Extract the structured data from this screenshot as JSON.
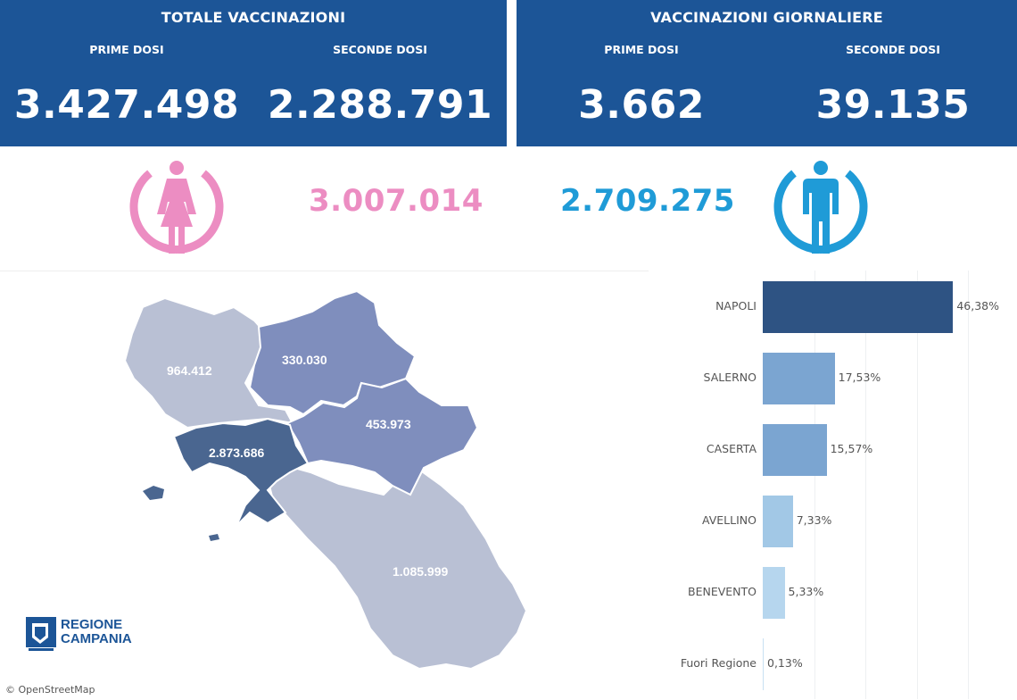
{
  "totale": {
    "title": "TOTALE VACCINAZIONI",
    "prime_label": "PRIME DOSI",
    "seconde_label": "SECONDE DOSI",
    "prime_value": "3.427.498",
    "seconde_value": "2.288.791"
  },
  "giornaliere": {
    "title": "VACCINAZIONI GIORNALIERE",
    "prime_label": "PRIME DOSI",
    "seconde_label": "SECONDE DOSI",
    "prime_value": "3.662",
    "seconde_value": "39.135"
  },
  "gender": {
    "female_value": "3.007.014",
    "male_value": "2.709.275",
    "female_color": "#ec8dc2",
    "male_color": "#1f9bd7"
  },
  "map": {
    "regions": [
      {
        "name": "Caserta",
        "value": "964.412",
        "color": "#b9c0d4"
      },
      {
        "name": "Benevento",
        "value": "330.030",
        "color": "#7f8ebd"
      },
      {
        "name": "Avellino",
        "value": "453.973",
        "color": "#7f8ebd"
      },
      {
        "name": "Napoli",
        "value": "2.873.686",
        "color": "#4a6690"
      },
      {
        "name": "Salerno",
        "value": "1.085.999",
        "color": "#b9c0d4"
      }
    ],
    "logo_line1": "REGIONE",
    "logo_line2": "CAMPANIA",
    "attribution": "© OpenStreetMap"
  },
  "chart_data": {
    "type": "bar",
    "orientation": "horizontal",
    "categories": [
      "NAPOLI",
      "SALERNO",
      "CASERTA",
      "AVELLINO",
      "BENEVENTO",
      "Fuori Regione"
    ],
    "values": [
      46.38,
      17.53,
      15.57,
      7.33,
      5.33,
      0.13
    ],
    "value_labels": [
      "46,38%",
      "17,53%",
      "15,57%",
      "7,33%",
      "5,33%",
      "0,13%"
    ],
    "colors": [
      "#2e5383",
      "#7ba5d1",
      "#7ba5d1",
      "#a2c8e6",
      "#b6d6ee",
      "#c8e0f2"
    ],
    "xlim": [
      0,
      50
    ],
    "grid": true
  }
}
